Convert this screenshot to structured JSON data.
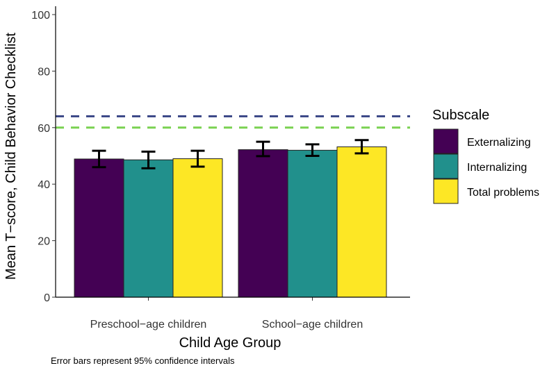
{
  "chart_data": {
    "type": "bar",
    "title": "",
    "xlabel": "Child Age Group",
    "ylabel": "Mean T−score, Child Behavior Checklist",
    "ylim": [
      0,
      100
    ],
    "yticks": [
      0,
      20,
      40,
      60,
      80,
      100
    ],
    "categories": [
      "Preschool−age children",
      "School−age children"
    ],
    "series": [
      {
        "name": "Externalizing",
        "color": "#440154",
        "values": [
          48.9,
          52.2
        ],
        "ci_low": [
          46.0,
          49.9
        ],
        "ci_high": [
          51.8,
          55.0
        ]
      },
      {
        "name": "Internalizing",
        "color": "#21908C",
        "values": [
          48.6,
          52.0
        ],
        "ci_low": [
          45.6,
          50.0
        ],
        "ci_high": [
          51.5,
          54.1
        ]
      },
      {
        "name": "Total problems",
        "color": "#FDE725",
        "values": [
          49.0,
          53.2
        ],
        "ci_low": [
          46.2,
          50.9
        ],
        "ci_high": [
          51.8,
          55.6
        ]
      }
    ],
    "reference_lines": [
      {
        "y": 64,
        "color": "#3E4A89",
        "style": "dashed"
      },
      {
        "y": 60,
        "color": "#7AD151",
        "style": "dashed"
      }
    ],
    "legend": {
      "title": "Subscale",
      "placement": "right"
    },
    "grid": false,
    "caption": "Error bars represent 95% confidence intervals"
  }
}
